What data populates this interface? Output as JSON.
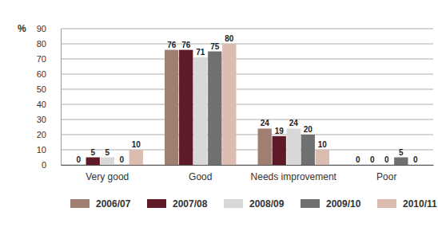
{
  "chart_data": {
    "type": "bar",
    "ylabel": "%",
    "categories": [
      "Very good",
      "Good",
      "Needs improvement",
      "Poor"
    ],
    "series": [
      {
        "name": "2006/07",
        "color": "#a07e72",
        "values": [
          0,
          76,
          24,
          0
        ]
      },
      {
        "name": "2007/08",
        "color": "#5e1a26",
        "values": [
          5,
          76,
          19,
          0
        ]
      },
      {
        "name": "2008/09",
        "color": "#d8d8d8",
        "values": [
          5,
          71,
          24,
          0
        ]
      },
      {
        "name": "2009/10",
        "color": "#707070",
        "values": [
          0,
          75,
          20,
          5
        ]
      },
      {
        "name": "2010/11",
        "color": "#dcbcb1",
        "values": [
          10,
          80,
          10,
          0
        ]
      }
    ],
    "ylim": [
      0,
      90
    ],
    "yticks": [
      0,
      10,
      20,
      30,
      40,
      50,
      60,
      70,
      80,
      90
    ],
    "grid": true,
    "data_labels": true,
    "legend": "bottom"
  }
}
